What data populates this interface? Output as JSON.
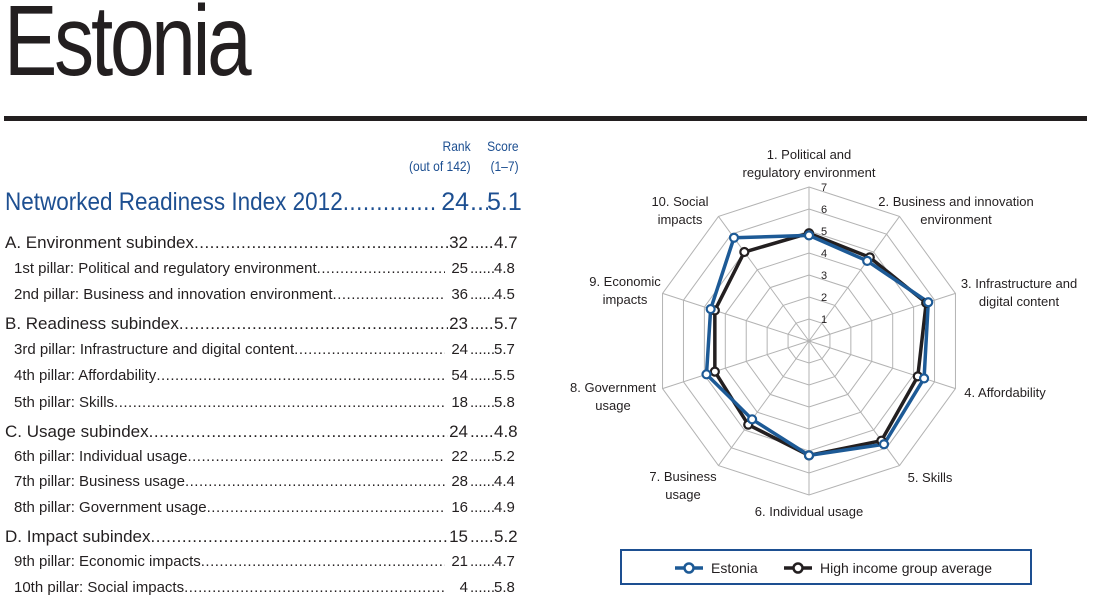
{
  "country": "Estonia",
  "columns": {
    "rank_title": "Rank",
    "rank_sub": "(out of 142)",
    "score_title": "Score",
    "score_sub": "(1–7)"
  },
  "index": {
    "label": "Networked Readiness Index 2012",
    "rank": "24",
    "score": "5.1"
  },
  "table_rows": [
    {
      "type": "sub",
      "label": "A. Environment subindex",
      "rank": "32",
      "score": "4.7"
    },
    {
      "type": "pillar",
      "label": "1st pillar: Political and regulatory environment",
      "rank": "25",
      "score": "4.8"
    },
    {
      "type": "pillar",
      "label": "2nd pillar: Business and innovation environment",
      "rank": "36",
      "score": "4.5"
    },
    {
      "type": "sub",
      "label": "B. Readiness subindex",
      "rank": "23",
      "score": "5.7"
    },
    {
      "type": "pillar",
      "label": "3rd pillar: Infrastructure and digital content",
      "rank": "24",
      "score": "5.7"
    },
    {
      "type": "pillar",
      "label": "4th pillar: Affordability",
      "rank": "54",
      "score": "5.5"
    },
    {
      "type": "pillar",
      "label": "5th pillar: Skills",
      "rank": "18",
      "score": "5.8"
    },
    {
      "type": "sub",
      "label": "C. Usage subindex",
      "rank": "24",
      "score": "4.8"
    },
    {
      "type": "pillar",
      "label": "6th pillar: Individual usage",
      "rank": "22",
      "score": "5.2"
    },
    {
      "type": "pillar",
      "label": "7th pillar: Business usage",
      "rank": "28",
      "score": "4.4"
    },
    {
      "type": "pillar",
      "label": "8th pillar: Government usage",
      "rank": "16",
      "score": "4.9"
    },
    {
      "type": "sub",
      "label": "D. Impact subindex",
      "rank": "15",
      "score": "5.2"
    },
    {
      "type": "pillar",
      "label": "9th pillar: Economic impacts",
      "rank": "21",
      "score": "4.7"
    },
    {
      "type": "pillar",
      "label": "10th pillar: Social impacts",
      "rank": "4",
      "score": "5.8"
    }
  ],
  "chart_data": {
    "type": "radar",
    "range": [
      0,
      7
    ],
    "ticks": [
      "1",
      "2",
      "3",
      "4",
      "5",
      "6",
      "7"
    ],
    "axes": [
      [
        "1. Political and",
        "regulatory environment"
      ],
      [
        "2. Business and innovation",
        "environment"
      ],
      [
        "3. Infrastructure and",
        "digital content"
      ],
      [
        "4. Affordability"
      ],
      [
        "5. Skills"
      ],
      [
        "6. Individual usage"
      ],
      [
        "7. Business",
        "usage"
      ],
      [
        "8. Government",
        "usage"
      ],
      [
        "9. Economic",
        "impacts"
      ],
      [
        "10. Social",
        "impacts"
      ]
    ],
    "series": [
      {
        "name": "Estonia",
        "color": "#1d5a96",
        "values": [
          4.8,
          4.5,
          5.7,
          5.5,
          5.8,
          5.2,
          4.4,
          4.9,
          4.7,
          5.8
        ]
      },
      {
        "name": "High income group average",
        "color": "#231f20",
        "values": [
          4.9,
          4.7,
          5.6,
          5.2,
          5.6,
          5.2,
          4.7,
          4.5,
          4.5,
          5.0
        ]
      }
    ],
    "legend": "bottom"
  }
}
